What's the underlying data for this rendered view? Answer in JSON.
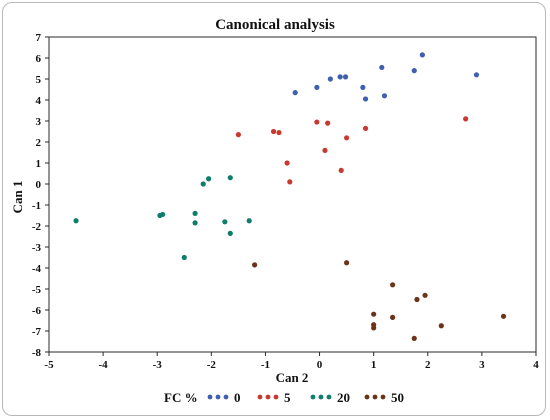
{
  "chart_data": {
    "type": "scatter",
    "title": "Canonical analysis",
    "xlabel": "Can 2",
    "ylabel": "Can 1",
    "xlim": [
      -5,
      4
    ],
    "ylim": [
      -8,
      7
    ],
    "x_ticks": [
      -5,
      -4,
      -3,
      -2,
      -1,
      0,
      1,
      2,
      3,
      4
    ],
    "y_ticks": [
      7,
      6,
      5,
      4,
      3,
      2,
      1,
      0,
      -1,
      -2,
      -3,
      -4,
      -5,
      -6,
      -7,
      -8
    ],
    "grid": false,
    "legend": {
      "title": "FC %",
      "placement": "bottom"
    },
    "series": [
      {
        "name": "0",
        "color": "#3f5fb0",
        "points": [
          [
            -0.45,
            4.35
          ],
          [
            -0.05,
            4.6
          ],
          [
            0.2,
            5.0
          ],
          [
            0.38,
            5.1
          ],
          [
            0.48,
            5.1
          ],
          [
            0.8,
            4.6
          ],
          [
            0.85,
            4.05
          ],
          [
            1.15,
            5.55
          ],
          [
            1.2,
            4.2
          ],
          [
            1.75,
            5.4
          ],
          [
            1.9,
            6.15
          ],
          [
            2.9,
            5.2
          ]
        ]
      },
      {
        "name": "5",
        "color": "#c8392f",
        "points": [
          [
            -1.5,
            2.35
          ],
          [
            -0.85,
            2.5
          ],
          [
            -0.75,
            2.45
          ],
          [
            -0.05,
            2.95
          ],
          [
            0.15,
            2.9
          ],
          [
            0.85,
            2.65
          ],
          [
            0.5,
            2.2
          ],
          [
            0.1,
            1.6
          ],
          [
            -0.6,
            1.0
          ],
          [
            -0.55,
            0.1
          ],
          [
            0.4,
            0.65
          ],
          [
            2.7,
            3.1
          ]
        ]
      },
      {
        "name": "20",
        "color": "#0f7d6c",
        "points": [
          [
            -4.5,
            -1.75
          ],
          [
            -2.95,
            -1.5
          ],
          [
            -2.9,
            -1.45
          ],
          [
            -2.3,
            -1.4
          ],
          [
            -2.3,
            -1.85
          ],
          [
            -2.15,
            0.0
          ],
          [
            -2.05,
            0.25
          ],
          [
            -1.65,
            0.3
          ],
          [
            -1.75,
            -1.8
          ],
          [
            -1.65,
            -2.35
          ],
          [
            -1.3,
            -1.75
          ],
          [
            -2.5,
            -3.5
          ]
        ]
      },
      {
        "name": "50",
        "color": "#6b3419",
        "points": [
          [
            -1.2,
            -3.85
          ],
          [
            0.5,
            -3.75
          ],
          [
            1.35,
            -4.8
          ],
          [
            1.0,
            -6.2
          ],
          [
            1.0,
            -6.7
          ],
          [
            1.0,
            -6.85
          ],
          [
            1.35,
            -6.35
          ],
          [
            1.75,
            -7.35
          ],
          [
            1.8,
            -5.5
          ],
          [
            1.95,
            -5.3
          ],
          [
            2.25,
            -6.75
          ],
          [
            3.4,
            -6.3
          ]
        ]
      }
    ]
  }
}
